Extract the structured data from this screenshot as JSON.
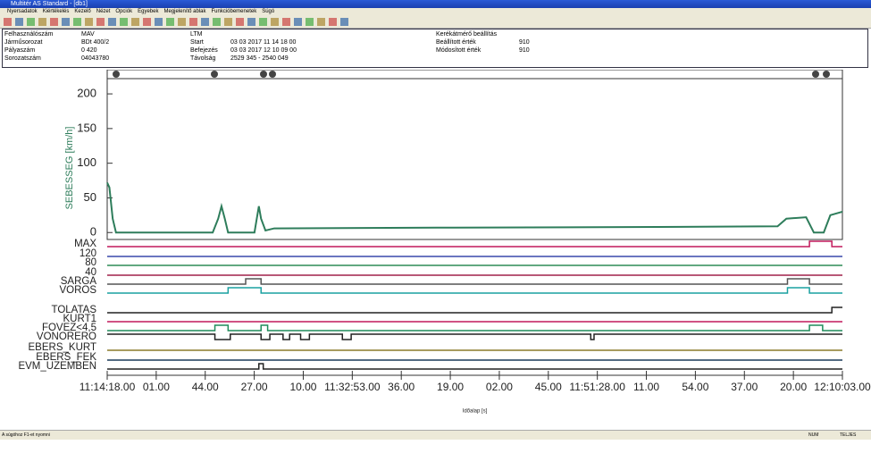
{
  "window": {
    "title": "Multitér AS Standard - [db1]",
    "menu": [
      "Nyersadatok",
      "Kiértékelés",
      "Kezelő",
      "Nézet",
      "Opciók",
      "Egyebek",
      "Megjelenítő ablak",
      "Funkcióbemenetek",
      "Súgó"
    ]
  },
  "info": {
    "col1": [
      [
        "Felhasználószám",
        "MAV"
      ],
      [
        "Járműsorozat",
        "BDt 400/2"
      ],
      [
        "Pályaszám",
        "0  420"
      ],
      [
        "Sorozatszám",
        "04043780"
      ]
    ],
    "col2": [
      [
        "LTM",
        ""
      ],
      [
        "Start",
        "03 03 2017 11 14 18 00"
      ],
      [
        "Befejezés",
        "03 03 2017 12 10 09 00"
      ],
      [
        "Távolság",
        "2529 345 - 2540 049"
      ]
    ],
    "col3": [
      [
        "Kerékátmérő beállítás",
        ""
      ],
      [
        "Beállított érték",
        "910"
      ],
      [
        "Módosított érték",
        "910"
      ]
    ]
  },
  "chart_data": {
    "type": "line",
    "ylabel": "SEBESSEG [km/h]",
    "xlabel": "Időalap [s]",
    "xlim": [
      0,
      3345
    ],
    "xticks": [
      {
        "value": 0,
        "label": "11:14:18.00"
      },
      {
        "value": 223,
        "label": "01.00"
      },
      {
        "value": 446,
        "label": "44.00"
      },
      {
        "value": 669,
        "label": "27.00"
      },
      {
        "value": 892,
        "label": "10.00"
      },
      {
        "value": 1115,
        "label": "11:32:53.00"
      },
      {
        "value": 1338,
        "label": "36.00"
      },
      {
        "value": 1561,
        "label": "19.00"
      },
      {
        "value": 1784,
        "label": "02.00"
      },
      {
        "value": 2007,
        "label": "45.00"
      },
      {
        "value": 2230,
        "label": "11:51:28.00"
      },
      {
        "value": 2453,
        "label": "11.00"
      },
      {
        "value": 2676,
        "label": "54.00"
      },
      {
        "value": 2899,
        "label": "37.00"
      },
      {
        "value": 3122,
        "label": "20.00"
      },
      {
        "value": 3345,
        "label": "12:10:03.00"
      }
    ],
    "ylim": [
      -10,
      222
    ],
    "yticks": [
      0,
      50,
      100,
      150,
      200
    ],
    "series": [
      {
        "color": "#2e7d5b",
        "x": [
          0,
          10,
          25,
          40,
          480,
          505,
          520,
          535,
          550,
          670,
          690,
          700,
          720,
          760,
          1500,
          2500,
          3050,
          3090,
          3180,
          3215,
          3260,
          3290,
          3345
        ],
        "values": [
          72,
          65,
          20,
          0,
          0,
          20,
          38,
          20,
          0,
          0,
          38,
          20,
          3,
          6,
          7,
          8,
          9,
          20,
          22,
          0,
          0,
          25,
          30
        ]
      }
    ],
    "signals": [
      {
        "name": "MAX",
        "color": "#c2185b",
        "x": [
          0,
          3195,
          3297
        ],
        "values": [
          0,
          1,
          0
        ]
      },
      {
        "name": "120",
        "color": "#3949ab",
        "x": [
          0
        ],
        "values": [
          0
        ]
      },
      {
        "name": "80",
        "color": "#2e8b57",
        "x": [
          0
        ],
        "values": [
          0
        ]
      },
      {
        "name": "40",
        "color": "#a0204a",
        "x": [
          0
        ],
        "values": [
          0
        ]
      },
      {
        "name": "SARGA",
        "color": "#555555",
        "x": [
          0,
          630,
          700,
          3095,
          3195
        ],
        "values": [
          0,
          1,
          0,
          1,
          0
        ]
      },
      {
        "name": "VOROS",
        "color": "#1aa0a0",
        "x": [
          0,
          550,
          700,
          3095,
          3195
        ],
        "values": [
          0,
          1,
          0,
          1,
          0
        ]
      },
      {
        "name": "TOLATAS",
        "color": "#222222",
        "x": [
          0,
          3297
        ],
        "values": [
          0,
          1
        ]
      },
      {
        "name": "KURT1",
        "color": "#c2185b",
        "x": [
          0
        ],
        "values": [
          0
        ]
      },
      {
        "name": "FOVEZ<4,5",
        "color": "#1e8c5a",
        "x": [
          0,
          490,
          550,
          700,
          730,
          3195,
          3255
        ],
        "values": [
          0,
          1,
          0,
          1,
          0,
          1,
          0
        ]
      },
      {
        "name": "VONORERO",
        "color": "#222222",
        "x": [
          0,
          490,
          560,
          700,
          740,
          800,
          830,
          880,
          920,
          1070,
          1110,
          2200,
          2215
        ],
        "values": [
          1,
          0,
          1,
          0,
          1,
          0,
          1,
          0,
          1,
          0,
          1,
          0,
          1
        ]
      },
      {
        "name": "EBERS_KURT",
        "color": "#8a7a2a",
        "x": [
          0
        ],
        "values": [
          0
        ]
      },
      {
        "name": "EBERS_FEK",
        "color": "#1a3a5a",
        "x": [
          0
        ],
        "values": [
          0
        ]
      },
      {
        "name": "EVM_UZEMBEN",
        "color": "#222222",
        "x": [
          0,
          690,
          710
        ],
        "values": [
          0,
          1,
          0
        ]
      }
    ]
  },
  "status": {
    "left": "A súgóhoz F1-et nyomni",
    "num": "NUM",
    "right": "TELJES"
  }
}
